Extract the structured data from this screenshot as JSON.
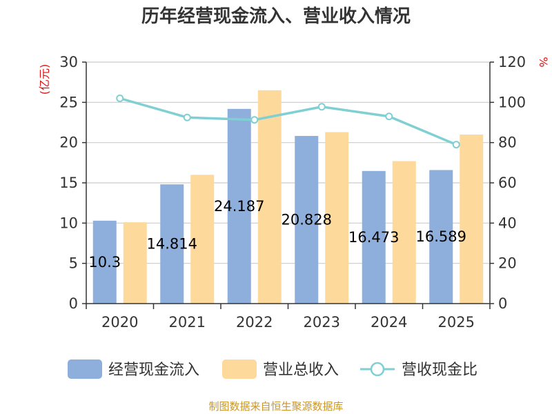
{
  "chart_data": {
    "type": "bar",
    "title": "历年经营现金流入、营业收入情况",
    "categories": [
      "2020",
      "2021",
      "2022",
      "2023",
      "2024",
      "2025"
    ],
    "series": [
      {
        "name": "经营现金流入",
        "kind": "bar",
        "axis": "left",
        "color": "#8eaedb",
        "values": [
          10.3,
          14.814,
          24.187,
          20.828,
          16.473,
          16.589
        ],
        "labels": [
          "10.3",
          "14.814",
          "24.187",
          "20.828",
          "16.473",
          "16.589"
        ]
      },
      {
        "name": "营业总收入",
        "kind": "bar",
        "axis": "left",
        "color": "#fdd99b",
        "values": [
          10.1,
          16.0,
          26.5,
          21.3,
          17.7,
          21.0
        ]
      },
      {
        "name": "营收现金比",
        "kind": "line",
        "axis": "right",
        "color": "#7fcfd3",
        "values": [
          102.0,
          92.5,
          91.3,
          97.8,
          93.0,
          79.0
        ]
      }
    ],
    "y_left": {
      "unit": "(亿元)",
      "min": 0,
      "max": 30,
      "ticks": [
        0,
        5,
        10,
        15,
        20,
        25,
        30
      ]
    },
    "y_right": {
      "unit": "%",
      "min": 0,
      "max": 120,
      "ticks": [
        0,
        20,
        40,
        60,
        80,
        100,
        120
      ]
    },
    "grid": true,
    "legend_position": "bottom"
  },
  "source": "制图数据来自恒生聚源数据库"
}
